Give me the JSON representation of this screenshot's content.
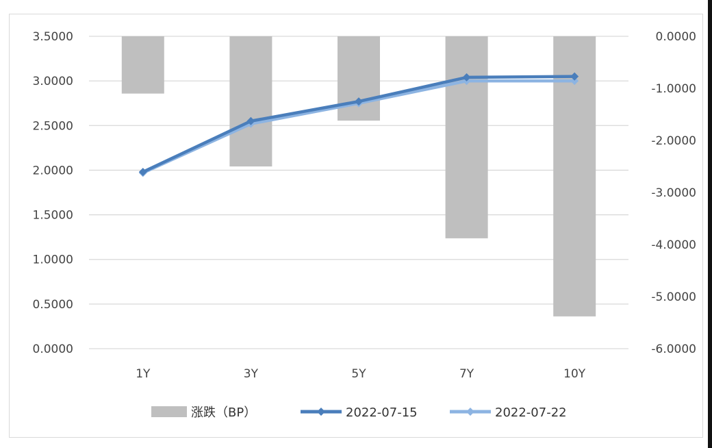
{
  "chart_data": {
    "type": "bar",
    "categories": [
      "1Y",
      "3Y",
      "5Y",
      "7Y",
      "10Y"
    ],
    "series": [
      {
        "name": "涨跌（BP）",
        "type": "bar",
        "axis": "right",
        "values": [
          -1.1,
          -2.5,
          -1.62,
          -3.88,
          -5.38
        ],
        "color": "#bfbfbf"
      },
      {
        "name": "2022-07-15",
        "type": "line",
        "axis": "left",
        "values": [
          1.98,
          2.55,
          2.77,
          3.04,
          3.05
        ],
        "color": "#4a7ebb"
      },
      {
        "name": "2022-07-22",
        "type": "line",
        "axis": "left",
        "values": [
          1.97,
          2.52,
          2.75,
          3.0,
          3.0
        ],
        "color": "#8db4e2"
      }
    ],
    "y_left": {
      "min": 0,
      "max": 3.5,
      "ticks": [
        "0.0000",
        "0.5000",
        "1.0000",
        "1.5000",
        "2.0000",
        "2.5000",
        "3.0000",
        "3.5000"
      ]
    },
    "y_right": {
      "min": -6,
      "max": 0,
      "ticks": [
        "-6.0000",
        "-5.0000",
        "-4.0000",
        "-3.0000",
        "-2.0000",
        "-1.0000",
        "0.0000"
      ]
    },
    "grid": true,
    "legend": "bottom"
  }
}
